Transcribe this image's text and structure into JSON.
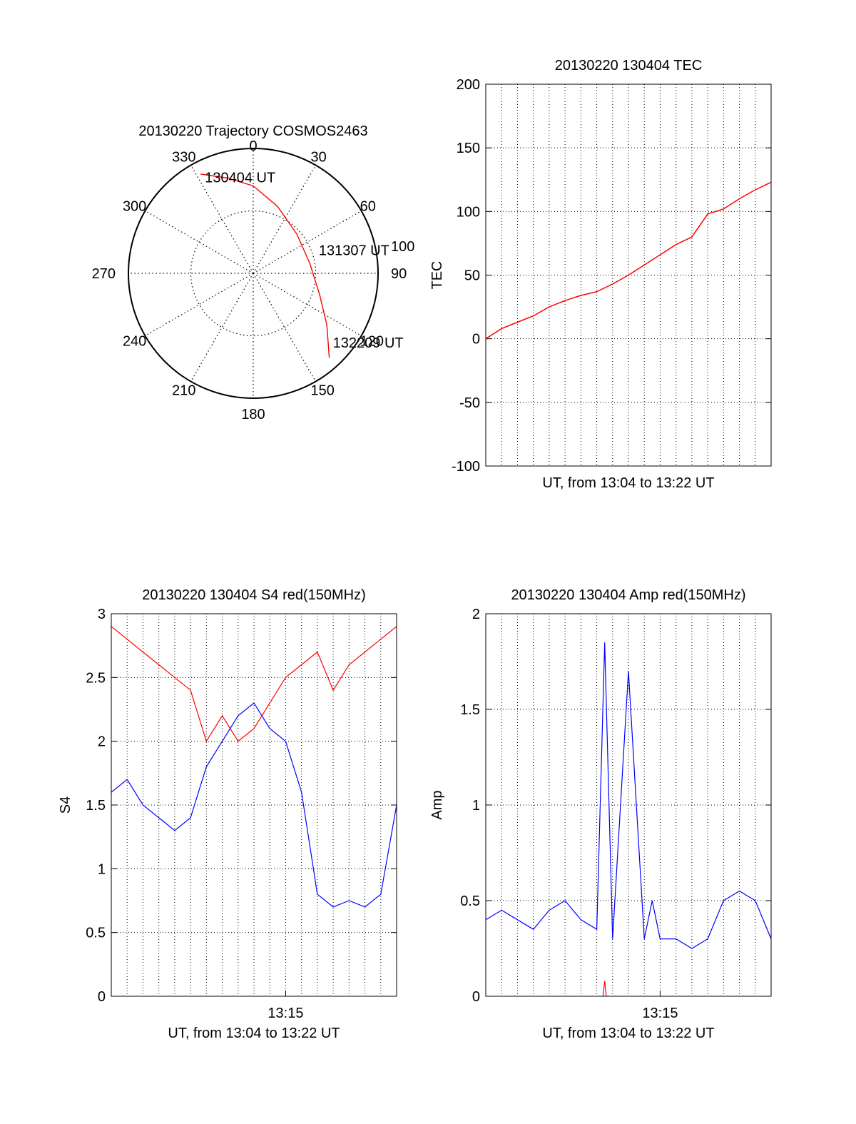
{
  "colors": {
    "red": "#ff0000",
    "blue": "#0000ff",
    "axis": "#000000",
    "grid": "#000000",
    "background": "#ffffff"
  },
  "chart_data": [
    {
      "id": "trajectory",
      "type": "polar",
      "title": "20130220 Trajectory COSMOS2463",
      "angle_labels": [
        "0",
        "30",
        "60",
        "90",
        "120",
        "150",
        "180",
        "210",
        "240",
        "270",
        "300",
        "330"
      ],
      "radius_label": "100",
      "radius_max": 100,
      "grid": true,
      "series": [
        {
          "color": "#ff0000",
          "points": [
            {
              "az": 332,
              "r": 90
            },
            {
              "az": 345,
              "r": 79
            },
            {
              "az": 0,
              "r": 70
            },
            {
              "az": 20,
              "r": 57
            },
            {
              "az": 48,
              "r": 47
            },
            {
              "az": 80,
              "r": 46
            },
            {
              "az": 108,
              "r": 56
            },
            {
              "az": 125,
              "r": 72
            },
            {
              "az": 138,
              "r": 91
            }
          ]
        }
      ],
      "annotations": [
        {
          "text": "130404 UT",
          "az": 336,
          "r": 84
        },
        {
          "text": "131307 UT",
          "az": 72,
          "r": 60
        },
        {
          "text": "132209 UT",
          "az": 129,
          "r": 88
        }
      ]
    },
    {
      "id": "tec",
      "type": "line",
      "title": "20130220 130404 TEC",
      "xlabel": "UT, from 13:04 to 13:22 UT",
      "ylabel": "TEC",
      "ylim": [
        -100,
        200
      ],
      "yticks": [
        -100,
        -50,
        0,
        50,
        100,
        150,
        200
      ],
      "xlim": [
        0,
        18
      ],
      "grid": true,
      "series": [
        {
          "color": "#ff0000",
          "x": [
            0,
            1,
            2,
            3,
            4,
            5,
            6,
            7,
            8,
            9,
            10,
            11,
            12,
            13,
            14,
            15,
            16,
            17,
            18
          ],
          "y": [
            0,
            8,
            13,
            18,
            25,
            30,
            34,
            37,
            43,
            50,
            58,
            66,
            74,
            80,
            98,
            102,
            110,
            117,
            123
          ]
        }
      ]
    },
    {
      "id": "s4",
      "type": "line",
      "title": "20130220 130404 S4 red(150MHz)",
      "xlabel": "UT, from 13:04 to 13:22 UT",
      "ylabel": "S4",
      "ylim": [
        0,
        3
      ],
      "yticks": [
        "0",
        "0.5",
        "1",
        "1.5",
        "2",
        "2.5",
        "3"
      ],
      "xlim": [
        0,
        18
      ],
      "xticks": [
        {
          "x": 11,
          "label": "13:15"
        }
      ],
      "grid": true,
      "series": [
        {
          "color": "#ff0000",
          "x": [
            0,
            1,
            2,
            3,
            4,
            5,
            6,
            7,
            8,
            9,
            10,
            11,
            12,
            13,
            14,
            15,
            16,
            17,
            18
          ],
          "y": [
            2.9,
            2.8,
            2.7,
            2.6,
            2.5,
            2.4,
            2.0,
            2.2,
            2.0,
            2.1,
            2.3,
            2.5,
            2.6,
            2.7,
            2.4,
            2.6,
            2.7,
            2.8,
            2.9
          ]
        },
        {
          "color": "#0000ff",
          "x": [
            0,
            1,
            2,
            3,
            4,
            5,
            6,
            7,
            8,
            9,
            10,
            11,
            12,
            13,
            14,
            15,
            16,
            17,
            18
          ],
          "y": [
            1.6,
            1.7,
            1.5,
            1.4,
            1.3,
            1.4,
            1.8,
            2.0,
            2.2,
            2.3,
            2.1,
            2.0,
            1.6,
            0.8,
            0.7,
            0.75,
            0.7,
            0.8,
            1.5
          ]
        }
      ]
    },
    {
      "id": "amp",
      "type": "line",
      "title": "20130220 130404 Amp red(150MHz)",
      "xlabel": "UT, from 13:04 to 13:22 UT",
      "ylabel": "Amp",
      "ylim": [
        0,
        2
      ],
      "yticks": [
        "0",
        "0.5",
        "1",
        "1.5",
        "2"
      ],
      "xlim": [
        0,
        18
      ],
      "xticks": [
        {
          "x": 11,
          "label": "13:15"
        }
      ],
      "grid": true,
      "series": [
        {
          "color": "#0000ff",
          "x": [
            0,
            1,
            2,
            3,
            4,
            5,
            6,
            7,
            7.5,
            8,
            9,
            10,
            10.5,
            11,
            12,
            13,
            14,
            15,
            16,
            17,
            18
          ],
          "y": [
            0.4,
            0.45,
            0.4,
            0.35,
            0.45,
            0.5,
            0.4,
            0.35,
            1.85,
            0.3,
            1.7,
            0.3,
            0.5,
            0.3,
            0.3,
            0.25,
            0.3,
            0.5,
            0.55,
            0.5,
            0.3
          ]
        },
        {
          "color": "#ff0000",
          "x": [
            7.4,
            7.5,
            7.6
          ],
          "y": [
            0,
            0.08,
            0
          ]
        }
      ]
    }
  ]
}
